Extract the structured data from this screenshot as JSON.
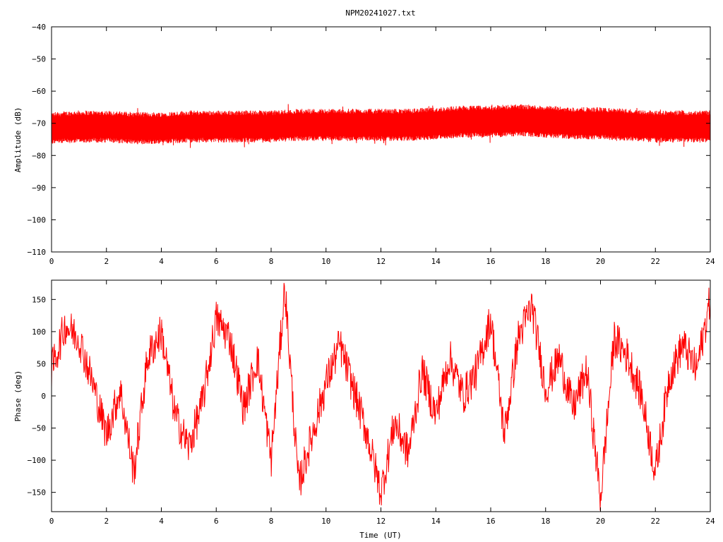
{
  "chart_data": [
    {
      "type": "line",
      "title": "NPM20241027.txt",
      "xlabel": "",
      "ylabel": "Amplitude (dB)",
      "xlim": [
        0,
        24
      ],
      "ylim": [
        -110,
        -40
      ],
      "xticks": [
        0,
        2,
        4,
        6,
        8,
        10,
        12,
        14,
        16,
        18,
        20,
        22,
        24
      ],
      "yticks": [
        -40,
        -50,
        -60,
        -70,
        -80,
        -90,
        -100,
        -110
      ],
      "ytick_labels": [
        "−40",
        "−50",
        "−60",
        "−70",
        "−80",
        "−90",
        "−100",
        "−110"
      ],
      "grid": false,
      "color": "#ff0000",
      "series": [
        {
          "x": [
            0,
            1,
            2,
            3,
            4,
            5,
            6,
            7,
            8,
            9,
            10,
            11,
            12,
            13,
            14,
            15,
            16,
            17,
            18,
            19,
            20,
            21,
            22,
            23,
            24
          ],
          "y_center": [
            -71.5,
            -71,
            -71,
            -71.5,
            -71.5,
            -71,
            -71,
            -71,
            -71,
            -70.5,
            -70.5,
            -70.5,
            -70.5,
            -70.5,
            -70,
            -69.5,
            -69.5,
            -69,
            -69.5,
            -70,
            -70,
            -70.5,
            -71,
            -71,
            -71
          ],
          "y_band_low": [
            -75,
            -74.5,
            -74.5,
            -75,
            -75,
            -74.5,
            -74.5,
            -74.5,
            -74.5,
            -74,
            -74,
            -74,
            -74,
            -74,
            -73.5,
            -73,
            -73,
            -72.5,
            -73,
            -73.5,
            -73.5,
            -74,
            -74.5,
            -74.5,
            -74.5
          ],
          "y_band_high": [
            -68,
            -67.5,
            -67.5,
            -68,
            -68,
            -67.5,
            -67.5,
            -67.5,
            -67.5,
            -67,
            -67,
            -67,
            -67,
            -67,
            -66.5,
            -66,
            -66,
            -65.5,
            -66,
            -66.5,
            -66.5,
            -67,
            -67.5,
            -67.5,
            -67.5
          ]
        }
      ]
    },
    {
      "type": "line",
      "title": "",
      "xlabel": "Time (UT)",
      "ylabel": "Phase (deg)",
      "xlim": [
        0,
        24
      ],
      "ylim": [
        -180,
        180
      ],
      "xticks": [
        0,
        2,
        4,
        6,
        8,
        10,
        12,
        14,
        16,
        18,
        20,
        22,
        24
      ],
      "yticks": [
        150,
        100,
        50,
        0,
        -50,
        -100,
        -150
      ],
      "ytick_labels": [
        "150",
        "100",
        "50",
        "0",
        "−50",
        "−100",
        "−150"
      ],
      "grid": false,
      "color": "#ff0000",
      "series": [
        {
          "x": [
            0,
            0.5,
            1,
            1.5,
            2,
            2.5,
            3,
            3.5,
            4,
            4.5,
            5,
            5.5,
            6,
            6.5,
            7,
            7.5,
            8,
            8.5,
            9,
            9.5,
            10,
            10.5,
            11,
            11.5,
            12,
            12.5,
            13,
            13.5,
            14,
            14.5,
            15,
            15.5,
            16,
            16.5,
            17,
            17.5,
            18,
            18.5,
            19,
            19.5,
            20,
            20.5,
            21,
            21.5,
            22,
            22.5,
            23,
            23.5,
            24
          ],
          "y": [
            40,
            110,
            90,
            20,
            -60,
            10,
            -120,
            60,
            100,
            -30,
            -80,
            -10,
            120,
            90,
            -20,
            60,
            -100,
            170,
            -140,
            -60,
            20,
            80,
            10,
            -60,
            -150,
            -40,
            -90,
            40,
            -30,
            60,
            0,
            40,
            120,
            -60,
            90,
            140,
            10,
            60,
            -20,
            40,
            -160,
            90,
            60,
            0,
            -120,
            30,
            80,
            40,
            150
          ]
        }
      ]
    }
  ]
}
